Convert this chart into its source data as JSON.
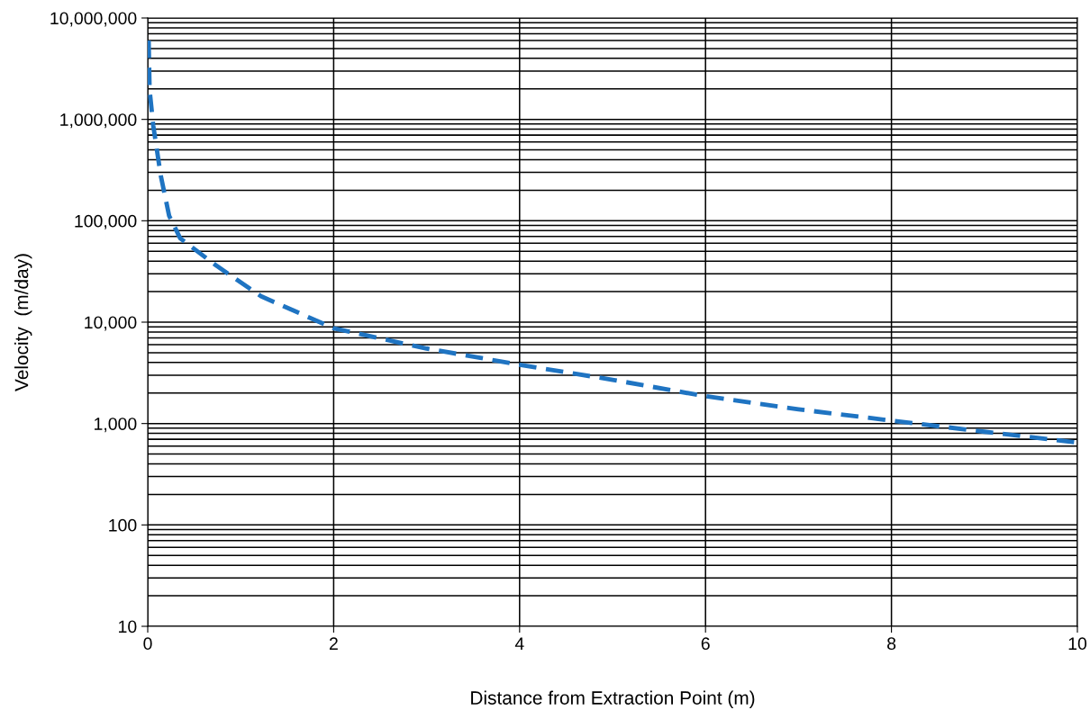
{
  "chart_data": {
    "type": "line",
    "xlabel": "Distance from Extraction Point (m)",
    "ylabel": "Velocity  (m/day)",
    "x": [
      0.01,
      0.02,
      0.06,
      0.14,
      0.23,
      0.35,
      0.74,
      1.22,
      2,
      3,
      4,
      5,
      6,
      7,
      8,
      9,
      10
    ],
    "series": [
      {
        "color": "#1f74c2",
        "values": [
          6000000,
          1950000,
          860000,
          280000,
          112000,
          67000,
          36000,
          18000,
          8700,
          5500,
          3800,
          2700,
          1860,
          1380,
          1070,
          830,
          650
        ]
      }
    ],
    "log": "y",
    "xlim": [
      0,
      10
    ],
    "xticks": [
      0,
      2,
      4,
      6,
      8,
      10
    ],
    "ylim": [
      10,
      10000000
    ],
    "yticks": [
      {
        "value": 10,
        "label": "10"
      },
      {
        "value": 100,
        "label": "100"
      },
      {
        "value": 1000,
        "label": "1,000"
      },
      {
        "value": 10000,
        "label": "10,000"
      },
      {
        "value": 100000,
        "label": "100,000"
      },
      {
        "value": 1000000,
        "label": "1,000,000"
      },
      {
        "value": 10000000,
        "label": "10,000,000"
      }
    ],
    "grid": true,
    "line_style": "dashed",
    "marker": "none",
    "legend": false
  }
}
